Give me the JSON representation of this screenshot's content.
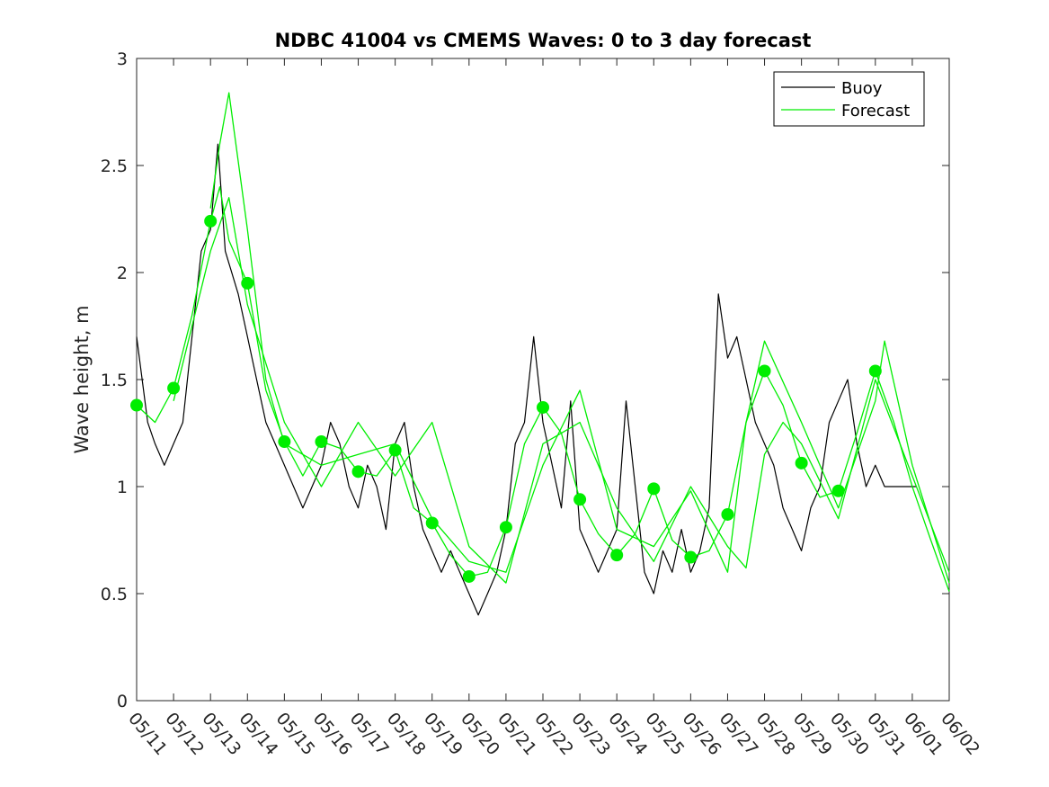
{
  "chart_data": {
    "type": "line",
    "title": "NDBC 41004 vs CMEMS Waves: 0 to 3 day forecast",
    "ylabel": "Wave height, m",
    "xlabel": "",
    "ylim": [
      0,
      3
    ],
    "yticks": [
      0,
      0.5,
      1,
      1.5,
      2,
      2.5,
      3
    ],
    "ytick_labels": [
      "0",
      "0.5",
      "1",
      "1.5",
      "2",
      "2.5",
      "3"
    ],
    "x_range_days": [
      0,
      22
    ],
    "x_tick_labels": [
      "05/11",
      "05/12",
      "05/13",
      "05/14",
      "05/15",
      "05/16",
      "05/17",
      "05/18",
      "05/19",
      "05/20",
      "05/21",
      "05/22",
      "05/23",
      "05/24",
      "05/25",
      "05/26",
      "05/27",
      "05/28",
      "05/29",
      "05/30",
      "05/31",
      "06/01",
      "06/02"
    ],
    "grid": false,
    "legend_position": "top-right",
    "legend": [
      {
        "label": "Buoy",
        "color": "#000000"
      },
      {
        "label": "Forecast",
        "color": "#00ee00"
      }
    ],
    "series": [
      {
        "name": "Buoy",
        "color": "#000000",
        "x": [
          0,
          0.3,
          0.5,
          0.75,
          1,
          1.25,
          1.5,
          1.75,
          2,
          2.2,
          2.4,
          2.75,
          3,
          3.25,
          3.5,
          3.75,
          4,
          4.25,
          4.5,
          4.75,
          5,
          5.25,
          5.5,
          5.75,
          6,
          6.25,
          6.5,
          6.75,
          7,
          7.25,
          7.5,
          7.75,
          8,
          8.25,
          8.5,
          8.75,
          9,
          9.25,
          9.5,
          9.75,
          10,
          10.25,
          10.5,
          10.75,
          11,
          11.25,
          11.5,
          11.75,
          12,
          12.25,
          12.5,
          12.75,
          13,
          13.25,
          13.5,
          13.75,
          14,
          14.25,
          14.5,
          14.75,
          15,
          15.25,
          15.5,
          15.75,
          16,
          16.25,
          16.5,
          16.75,
          17,
          17.25,
          17.5,
          17.75,
          18,
          18.25,
          18.5,
          18.75,
          19,
          19.25,
          19.5,
          19.75,
          20,
          20.25,
          20.5,
          20.75,
          21,
          21.1
        ],
        "y": [
          1.7,
          1.3,
          1.2,
          1.1,
          1.2,
          1.3,
          1.7,
          2.1,
          2.2,
          2.6,
          2.1,
          1.9,
          1.7,
          1.5,
          1.3,
          1.2,
          1.1,
          1,
          0.9,
          1,
          1.1,
          1.3,
          1.2,
          1.0,
          0.9,
          1.1,
          1.0,
          0.8,
          1.2,
          1.3,
          1.0,
          0.8,
          0.7,
          0.6,
          0.7,
          0.6,
          0.5,
          0.4,
          0.5,
          0.6,
          0.8,
          1.2,
          1.3,
          1.7,
          1.3,
          1.1,
          0.9,
          1.4,
          0.8,
          0.7,
          0.6,
          0.7,
          0.8,
          1.4,
          1.0,
          0.6,
          0.5,
          0.7,
          0.6,
          0.8,
          0.6,
          0.7,
          0.9,
          1.9,
          1.6,
          1.7,
          1.5,
          1.3,
          1.2,
          1.1,
          0.9,
          0.8,
          0.7,
          0.9,
          1.0,
          1.3,
          1.4,
          1.5,
          1.2,
          1.0,
          1.1,
          1.0,
          1.0,
          1.0,
          1.0,
          1.0
        ]
      },
      {
        "name": "Forecast",
        "color": "#00ee00",
        "x": [
          0,
          0.5,
          1,
          1.5,
          2,
          2.25,
          2.5,
          3,
          3.5,
          4,
          4.5,
          5,
          5.5,
          6,
          6.5,
          7,
          7.5,
          8,
          8.5,
          9,
          9.5,
          10,
          10.5,
          11,
          11.5,
          12,
          12.5,
          13,
          13.5,
          14,
          14.5,
          15,
          15.5,
          16,
          16.5,
          17,
          17.5,
          18,
          18.5,
          19,
          19.5,
          20,
          20.5,
          21,
          21.5,
          22
        ],
        "y": [
          1.38,
          1.3,
          1.46,
          1.8,
          2.24,
          2.4,
          2.15,
          1.95,
          1.45,
          1.21,
          1.05,
          1.21,
          1.18,
          1.07,
          1.05,
          1.17,
          0.9,
          0.83,
          0.68,
          0.58,
          0.6,
          0.81,
          1.2,
          1.37,
          1.25,
          0.94,
          0.78,
          0.68,
          0.78,
          0.99,
          0.75,
          0.67,
          0.7,
          0.87,
          1.3,
          1.54,
          1.38,
          1.11,
          0.95,
          0.98,
          1.25,
          1.54,
          1.3,
          1.0,
          0.75,
          0.51
        ]
      },
      {
        "name": "Forecast",
        "color": "#00ee00",
        "x": [
          2,
          2.25,
          2.5,
          3,
          3.5,
          4,
          5,
          6,
          7,
          8,
          9,
          10,
          11,
          12,
          13,
          14,
          15,
          16,
          16.5,
          17,
          18,
          19,
          20,
          20.25,
          21,
          22
        ],
        "y": [
          2.3,
          2.6,
          2.84,
          2.2,
          1.5,
          1.2,
          1.1,
          1.15,
          1.2,
          0.85,
          0.65,
          0.6,
          1.1,
          1.45,
          0.8,
          0.72,
          0.98,
          0.6,
          1.3,
          1.68,
          1.3,
          0.9,
          1.4,
          1.68,
          1.1,
          0.55
        ]
      },
      {
        "name": "Forecast",
        "color": "#00ee00",
        "x": [
          1,
          2,
          2.5,
          3,
          4,
          5,
          6,
          7,
          8,
          9,
          10,
          11,
          12,
          13,
          14,
          15,
          16,
          16.5,
          17,
          17.5,
          18,
          19,
          20,
          21,
          22
        ],
        "y": [
          1.4,
          2.1,
          2.35,
          1.85,
          1.3,
          1.0,
          1.3,
          1.05,
          1.3,
          0.72,
          0.55,
          1.2,
          1.3,
          0.9,
          0.65,
          1.0,
          0.72,
          0.62,
          1.15,
          1.3,
          1.2,
          0.85,
          1.5,
          1.05,
          0.6
        ]
      }
    ],
    "markers": {
      "color": "#00ee00",
      "x": [
        0,
        1,
        2,
        3,
        4,
        5,
        6,
        7,
        8,
        9,
        10,
        11,
        12,
        13,
        14,
        15,
        16,
        17,
        18,
        19,
        20
      ],
      "y": [
        1.38,
        1.46,
        2.24,
        1.95,
        1.21,
        1.21,
        1.07,
        1.17,
        0.83,
        0.58,
        0.81,
        1.37,
        0.94,
        0.68,
        0.99,
        0.67,
        0.87,
        1.54,
        1.11,
        0.98,
        1.54
      ]
    }
  }
}
